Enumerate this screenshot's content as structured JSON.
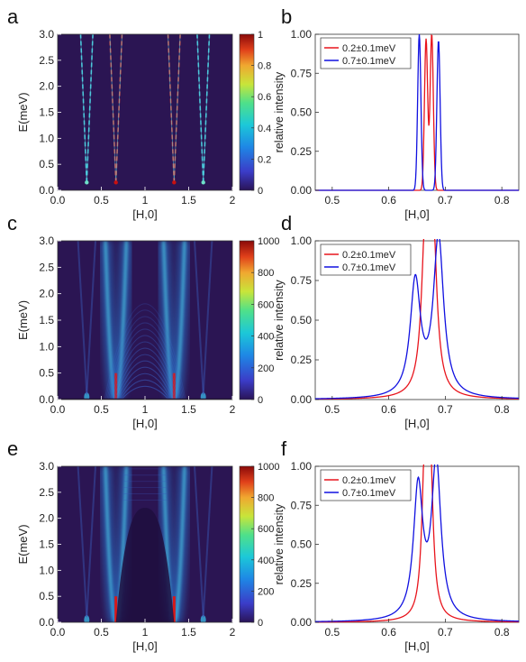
{
  "panel_letters": [
    "a",
    "b",
    "c",
    "d",
    "e",
    "f"
  ],
  "chart_data": [
    {
      "panel": "a",
      "type": "heatmap",
      "xlabel": "[H,0]",
      "ylabel": "E(meV)",
      "xlim": [
        0,
        2
      ],
      "ylim": [
        0,
        3
      ],
      "xticks": [
        "0.0",
        "0.5",
        "1",
        "1.5",
        "2"
      ],
      "yticks": [
        "0.0",
        "0.5",
        "1.0",
        "1.5",
        "2.0",
        "2.5",
        "3.0"
      ],
      "colorbar": {
        "range": [
          0,
          1
        ],
        "ticks": [
          "0",
          "0.2",
          "0.4",
          "0.6",
          "0.8",
          "1"
        ]
      },
      "colormap": "jet-like dark",
      "features": [
        {
          "description": "sharp dispersive branches from gap at H=0.333",
          "x_at_E0": 0.333
        },
        {
          "description": "sharp dispersive branches from gap at H=0.667",
          "x_at_E0": 0.667
        },
        {
          "description": "sharp dispersive branches from gap at H=1.333",
          "x_at_E0": 1.333
        },
        {
          "description": "sharp dispersive branches from gap at H=1.667",
          "x_at_E0": 1.667
        }
      ]
    },
    {
      "panel": "b",
      "type": "line",
      "xlabel": "[H,0]",
      "ylabel": "relative intensity",
      "xlim": [
        0.47,
        0.83
      ],
      "ylim": [
        0,
        1
      ],
      "xticks": [
        "0.5",
        "0.6",
        "0.7",
        "0.8"
      ],
      "yticks": [
        "0.00",
        "0.25",
        "0.50",
        "0.75",
        "1.00"
      ],
      "legend": "top-left",
      "series": [
        {
          "name": "0.2±0.1meV",
          "color": "#e8141c",
          "peaks": [
            {
              "x": 0.666,
              "height": 0.97,
              "width": 0.004
            },
            {
              "x": 0.676,
              "height": 1.0,
              "width": 0.004
            }
          ]
        },
        {
          "name": "0.7±0.1meV",
          "color": "#1010e0",
          "peaks": [
            {
              "x": 0.654,
              "height": 1.0,
              "width": 0.004
            },
            {
              "x": 0.688,
              "height": 0.96,
              "width": 0.004
            }
          ]
        }
      ]
    },
    {
      "panel": "c",
      "type": "heatmap",
      "xlabel": "[H,0]",
      "ylabel": "E(meV)",
      "xlim": [
        0,
        2
      ],
      "ylim": [
        0,
        3
      ],
      "xticks": [
        "0.0",
        "0.5",
        "1",
        "1.5",
        "2"
      ],
      "yticks": [
        "0.0",
        "0.5",
        "1.0",
        "1.5",
        "2.0",
        "2.5",
        "3.0"
      ],
      "colorbar": {
        "range": [
          0,
          1000
        ],
        "ticks": [
          "0",
          "200",
          "400",
          "600",
          "800",
          "1000"
        ]
      },
      "colormap": "jet-like dark",
      "features": [
        {
          "description": "broad dispersive continua from H=0.667 and H=1.333 with arched fringes",
          "x_at_E0": [
            0.667,
            1.333
          ]
        }
      ]
    },
    {
      "panel": "d",
      "type": "line",
      "xlabel": "[H,0]",
      "ylabel": "relative intensity",
      "xlim": [
        0.47,
        0.83
      ],
      "ylim": [
        0,
        1
      ],
      "xticks": [
        "0.5",
        "0.6",
        "0.7",
        "0.8"
      ],
      "yticks": [
        "0.00",
        "0.25",
        "0.50",
        "0.75",
        "1.00"
      ],
      "legend": "top-left",
      "series": [
        {
          "name": "0.2±0.1meV",
          "color": "#e8141c",
          "peaks": [
            {
              "x": 0.665,
              "height": 0.97,
              "width": 0.008
            },
            {
              "x": 0.678,
              "height": 1.0,
              "width": 0.008
            }
          ]
        },
        {
          "name": "0.7±0.1meV",
          "color": "#1010e0",
          "peaks": [
            {
              "x": 0.647,
              "height": 0.72,
              "width": 0.011
            },
            {
              "x": 0.688,
              "height": 1.0,
              "width": 0.011
            }
          ]
        }
      ]
    },
    {
      "panel": "e",
      "type": "heatmap",
      "xlabel": "[H,0]",
      "ylabel": "E(meV)",
      "xlim": [
        0,
        2
      ],
      "ylim": [
        0,
        3
      ],
      "xticks": [
        "0.0",
        "0.5",
        "1",
        "1.5",
        "2"
      ],
      "yticks": [
        "0.0",
        "0.5",
        "1.0",
        "1.5",
        "2.0",
        "2.5",
        "3.0"
      ],
      "colorbar": {
        "range": [
          0,
          1000
        ],
        "ticks": [
          "0",
          "200",
          "400",
          "600",
          "800",
          "1000"
        ]
      },
      "colormap": "jet-like dark",
      "features": [
        {
          "description": "broad dispersive continua from H=0.667 and H=1.333 with dark dome centred at H=1 reaching 2.2 meV",
          "x_at_E0": [
            0.667,
            1.333
          ]
        }
      ]
    },
    {
      "panel": "f",
      "type": "line",
      "xlabel": "[H,0]",
      "ylabel": "relative intensity",
      "xlim": [
        0.47,
        0.83
      ],
      "ylim": [
        0,
        1
      ],
      "xticks": [
        "0.5",
        "0.6",
        "0.7",
        "0.8"
      ],
      "yticks": [
        "0.00",
        "0.25",
        "0.50",
        "0.75",
        "1.00"
      ],
      "legend": "top-left",
      "series": [
        {
          "name": "0.2±0.1meV",
          "color": "#e8141c",
          "peaks": [
            {
              "x": 0.664,
              "height": 0.96,
              "width": 0.006
            },
            {
              "x": 0.673,
              "height": 0.97,
              "width": 0.006
            }
          ]
        },
        {
          "name": "0.7±0.1meV",
          "color": "#1010e0",
          "peaks": [
            {
              "x": 0.652,
              "height": 0.84,
              "width": 0.01
            },
            {
              "x": 0.684,
              "height": 1.0,
              "width": 0.01
            }
          ]
        }
      ]
    }
  ]
}
